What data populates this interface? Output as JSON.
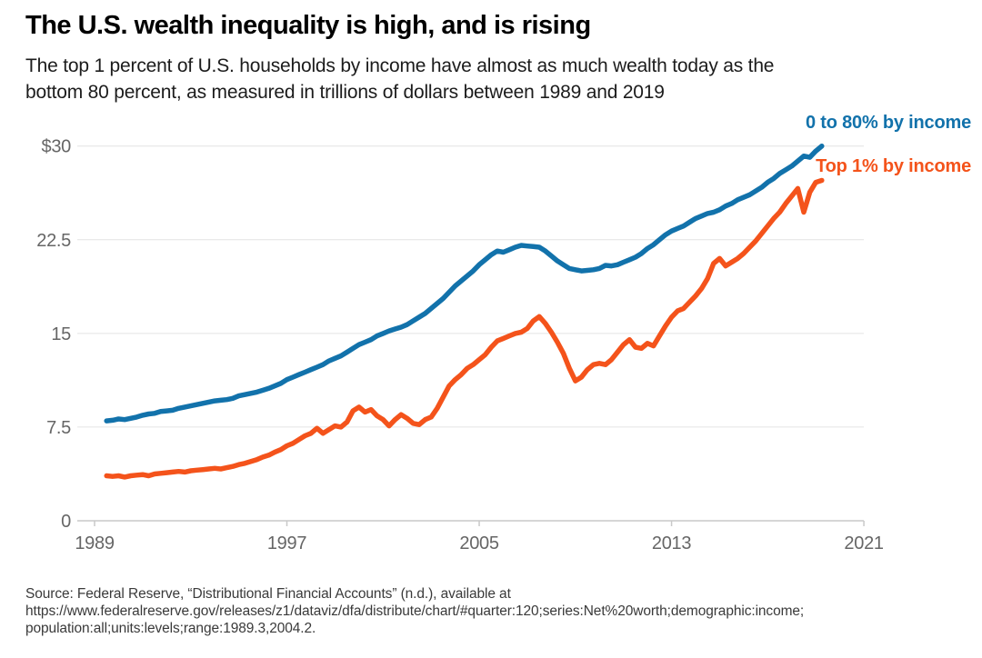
{
  "header": {
    "title": "The U.S. wealth inequality is high, and is rising",
    "subtitle_lines": [
      "The top 1 percent of U.S. households by income have almost as much wealth today as the",
      "bottom 80 percent, as measured in trillions of dollars between 1989 and 2019"
    ]
  },
  "legend": {
    "items": [
      {
        "label": "0 to 80% by income",
        "color": "#1272ab"
      },
      {
        "label": "Top 1% by income",
        "color": "#f4531b"
      }
    ],
    "position": "top-right"
  },
  "footer": {
    "lines": [
      "Source: Federal Reserve, “Distributional Financial Accounts” (n.d.), available at",
      "https://www.federalreserve.gov/releases/z1/dataviz/dfa/distribute/chart/#quarter:120;series:Net%20worth;demographic:income;",
      "population:all;units:levels;range:1989.3,2004.2."
    ]
  },
  "chart_data": {
    "type": "line",
    "title": "The U.S. wealth inequality is high, and is rising",
    "units": "trillions of dollars",
    "grid": "horizontal",
    "legend_position": "top-right",
    "x_axis": {
      "ticks": [
        1989,
        1997,
        2005,
        2013,
        2021
      ],
      "range": [
        1988.3,
        2021.3
      ]
    },
    "y_axis": {
      "ticks": [
        0,
        7.5,
        15,
        22.5,
        30
      ],
      "tick_labels": [
        "0",
        "7.5",
        "15",
        "22.5",
        "$30"
      ],
      "range": [
        0,
        30
      ]
    },
    "series": [
      {
        "name": "0 to 80% by income",
        "color": "#1272ab",
        "points": [
          [
            1989.5,
            8.0
          ],
          [
            1989.75,
            8.05
          ],
          [
            1990,
            8.15
          ],
          [
            1990.25,
            8.1
          ],
          [
            1990.5,
            8.2
          ],
          [
            1990.75,
            8.3
          ],
          [
            1991,
            8.45
          ],
          [
            1991.25,
            8.55
          ],
          [
            1991.5,
            8.6
          ],
          [
            1991.75,
            8.75
          ],
          [
            1992,
            8.8
          ],
          [
            1992.25,
            8.85
          ],
          [
            1992.5,
            9.0
          ],
          [
            1992.75,
            9.1
          ],
          [
            1993,
            9.2
          ],
          [
            1993.25,
            9.3
          ],
          [
            1993.5,
            9.4
          ],
          [
            1993.75,
            9.5
          ],
          [
            1994,
            9.6
          ],
          [
            1994.25,
            9.65
          ],
          [
            1994.5,
            9.7
          ],
          [
            1994.75,
            9.8
          ],
          [
            1995,
            10.0
          ],
          [
            1995.25,
            10.1
          ],
          [
            1995.5,
            10.2
          ],
          [
            1995.75,
            10.3
          ],
          [
            1996,
            10.45
          ],
          [
            1996.25,
            10.6
          ],
          [
            1996.5,
            10.8
          ],
          [
            1996.75,
            11.0
          ],
          [
            1997,
            11.3
          ],
          [
            1997.25,
            11.5
          ],
          [
            1997.5,
            11.7
          ],
          [
            1997.75,
            11.9
          ],
          [
            1998,
            12.1
          ],
          [
            1998.25,
            12.3
          ],
          [
            1998.5,
            12.5
          ],
          [
            1998.75,
            12.8
          ],
          [
            1999,
            13.0
          ],
          [
            1999.25,
            13.2
          ],
          [
            1999.5,
            13.5
          ],
          [
            1999.75,
            13.8
          ],
          [
            2000,
            14.1
          ],
          [
            2000.25,
            14.3
          ],
          [
            2000.5,
            14.5
          ],
          [
            2000.75,
            14.8
          ],
          [
            2001,
            15.0
          ],
          [
            2001.25,
            15.2
          ],
          [
            2001.5,
            15.35
          ],
          [
            2001.75,
            15.5
          ],
          [
            2002,
            15.7
          ],
          [
            2002.25,
            16.0
          ],
          [
            2002.5,
            16.3
          ],
          [
            2002.75,
            16.6
          ],
          [
            2003,
            17.0
          ],
          [
            2003.25,
            17.4
          ],
          [
            2003.5,
            17.8
          ],
          [
            2003.75,
            18.3
          ],
          [
            2004,
            18.8
          ],
          [
            2004.25,
            19.2
          ],
          [
            2004.5,
            19.6
          ],
          [
            2004.75,
            20.0
          ],
          [
            2005,
            20.5
          ],
          [
            2005.25,
            20.9
          ],
          [
            2005.5,
            21.3
          ],
          [
            2005.75,
            21.6
          ],
          [
            2006,
            21.5
          ],
          [
            2006.25,
            21.7
          ],
          [
            2006.5,
            21.9
          ],
          [
            2006.75,
            22.05
          ],
          [
            2007,
            22.0
          ],
          [
            2007.25,
            21.95
          ],
          [
            2007.5,
            21.9
          ],
          [
            2007.75,
            21.6
          ],
          [
            2008,
            21.2
          ],
          [
            2008.25,
            20.8
          ],
          [
            2008.5,
            20.5
          ],
          [
            2008.75,
            20.2
          ],
          [
            2009,
            20.1
          ],
          [
            2009.25,
            20.0
          ],
          [
            2009.5,
            20.05
          ],
          [
            2009.75,
            20.1
          ],
          [
            2010,
            20.2
          ],
          [
            2010.25,
            20.45
          ],
          [
            2010.5,
            20.4
          ],
          [
            2010.75,
            20.5
          ],
          [
            2011,
            20.7
          ],
          [
            2011.25,
            20.9
          ],
          [
            2011.5,
            21.1
          ],
          [
            2011.75,
            21.4
          ],
          [
            2012,
            21.8
          ],
          [
            2012.25,
            22.1
          ],
          [
            2012.5,
            22.5
          ],
          [
            2012.75,
            22.9
          ],
          [
            2013,
            23.2
          ],
          [
            2013.25,
            23.4
          ],
          [
            2013.5,
            23.6
          ],
          [
            2013.75,
            23.9
          ],
          [
            2014,
            24.2
          ],
          [
            2014.25,
            24.4
          ],
          [
            2014.5,
            24.6
          ],
          [
            2014.75,
            24.7
          ],
          [
            2015,
            24.9
          ],
          [
            2015.25,
            25.2
          ],
          [
            2015.5,
            25.4
          ],
          [
            2015.75,
            25.7
          ],
          [
            2016,
            25.9
          ],
          [
            2016.25,
            26.1
          ],
          [
            2016.5,
            26.4
          ],
          [
            2016.75,
            26.7
          ],
          [
            2017,
            27.1
          ],
          [
            2017.25,
            27.4
          ],
          [
            2017.5,
            27.8
          ],
          [
            2017.75,
            28.1
          ],
          [
            2018,
            28.4
          ],
          [
            2018.25,
            28.8
          ],
          [
            2018.5,
            29.2
          ],
          [
            2018.75,
            29.1
          ],
          [
            2019,
            29.6
          ],
          [
            2019.25,
            30.0
          ]
        ]
      },
      {
        "name": "Top 1% by income",
        "color": "#f4531b",
        "points": [
          [
            1989.5,
            3.6
          ],
          [
            1989.75,
            3.55
          ],
          [
            1990,
            3.6
          ],
          [
            1990.25,
            3.5
          ],
          [
            1990.5,
            3.6
          ],
          [
            1990.75,
            3.65
          ],
          [
            1991,
            3.7
          ],
          [
            1991.25,
            3.6
          ],
          [
            1991.5,
            3.75
          ],
          [
            1991.75,
            3.8
          ],
          [
            1992,
            3.85
          ],
          [
            1992.25,
            3.9
          ],
          [
            1992.5,
            3.95
          ],
          [
            1992.75,
            3.9
          ],
          [
            1993,
            4.0
          ],
          [
            1993.25,
            4.05
          ],
          [
            1993.5,
            4.1
          ],
          [
            1993.75,
            4.15
          ],
          [
            1994,
            4.2
          ],
          [
            1994.25,
            4.15
          ],
          [
            1994.5,
            4.25
          ],
          [
            1994.75,
            4.35
          ],
          [
            1995,
            4.5
          ],
          [
            1995.25,
            4.6
          ],
          [
            1995.5,
            4.75
          ],
          [
            1995.75,
            4.9
          ],
          [
            1996,
            5.1
          ],
          [
            1996.25,
            5.25
          ],
          [
            1996.5,
            5.5
          ],
          [
            1996.75,
            5.7
          ],
          [
            1997,
            6.0
          ],
          [
            1997.25,
            6.2
          ],
          [
            1997.5,
            6.5
          ],
          [
            1997.75,
            6.8
          ],
          [
            1998,
            7.0
          ],
          [
            1998.25,
            7.4
          ],
          [
            1998.5,
            7.0
          ],
          [
            1998.75,
            7.3
          ],
          [
            1999,
            7.6
          ],
          [
            1999.25,
            7.5
          ],
          [
            1999.5,
            7.9
          ],
          [
            1999.75,
            8.8
          ],
          [
            2000,
            9.1
          ],
          [
            2000.25,
            8.7
          ],
          [
            2000.5,
            8.9
          ],
          [
            2000.75,
            8.4
          ],
          [
            2001,
            8.1
          ],
          [
            2001.25,
            7.6
          ],
          [
            2001.5,
            8.1
          ],
          [
            2001.75,
            8.5
          ],
          [
            2002,
            8.2
          ],
          [
            2002.25,
            7.8
          ],
          [
            2002.5,
            7.7
          ],
          [
            2002.75,
            8.1
          ],
          [
            2003,
            8.3
          ],
          [
            2003.25,
            9.0
          ],
          [
            2003.5,
            9.9
          ],
          [
            2003.75,
            10.8
          ],
          [
            2004,
            11.3
          ],
          [
            2004.25,
            11.7
          ],
          [
            2004.5,
            12.2
          ],
          [
            2004.75,
            12.5
          ],
          [
            2005,
            12.9
          ],
          [
            2005.25,
            13.3
          ],
          [
            2005.5,
            13.9
          ],
          [
            2005.75,
            14.4
          ],
          [
            2006,
            14.6
          ],
          [
            2006.25,
            14.8
          ],
          [
            2006.5,
            15.0
          ],
          [
            2006.75,
            15.1
          ],
          [
            2007,
            15.4
          ],
          [
            2007.25,
            16.0
          ],
          [
            2007.5,
            16.35
          ],
          [
            2007.75,
            15.8
          ],
          [
            2008,
            15.1
          ],
          [
            2008.25,
            14.3
          ],
          [
            2008.5,
            13.4
          ],
          [
            2008.75,
            12.2
          ],
          [
            2009,
            11.2
          ],
          [
            2009.25,
            11.5
          ],
          [
            2009.5,
            12.1
          ],
          [
            2009.75,
            12.5
          ],
          [
            2010,
            12.6
          ],
          [
            2010.25,
            12.5
          ],
          [
            2010.5,
            12.9
          ],
          [
            2010.75,
            13.5
          ],
          [
            2011,
            14.1
          ],
          [
            2011.25,
            14.5
          ],
          [
            2011.5,
            13.9
          ],
          [
            2011.75,
            13.8
          ],
          [
            2012,
            14.2
          ],
          [
            2012.25,
            14.0
          ],
          [
            2012.5,
            14.8
          ],
          [
            2012.75,
            15.6
          ],
          [
            2013,
            16.3
          ],
          [
            2013.25,
            16.8
          ],
          [
            2013.5,
            17.0
          ],
          [
            2013.75,
            17.5
          ],
          [
            2014,
            18.0
          ],
          [
            2014.25,
            18.6
          ],
          [
            2014.5,
            19.4
          ],
          [
            2014.75,
            20.6
          ],
          [
            2015,
            21.0
          ],
          [
            2015.25,
            20.4
          ],
          [
            2015.5,
            20.7
          ],
          [
            2015.75,
            21.0
          ],
          [
            2016,
            21.4
          ],
          [
            2016.25,
            21.9
          ],
          [
            2016.5,
            22.4
          ],
          [
            2016.75,
            23.0
          ],
          [
            2017,
            23.6
          ],
          [
            2017.25,
            24.2
          ],
          [
            2017.5,
            24.7
          ],
          [
            2017.75,
            25.4
          ],
          [
            2018,
            26.0
          ],
          [
            2018.25,
            26.6
          ],
          [
            2018.5,
            24.7
          ],
          [
            2018.75,
            26.3
          ],
          [
            2019,
            27.1
          ],
          [
            2019.25,
            27.25
          ]
        ]
      }
    ]
  }
}
